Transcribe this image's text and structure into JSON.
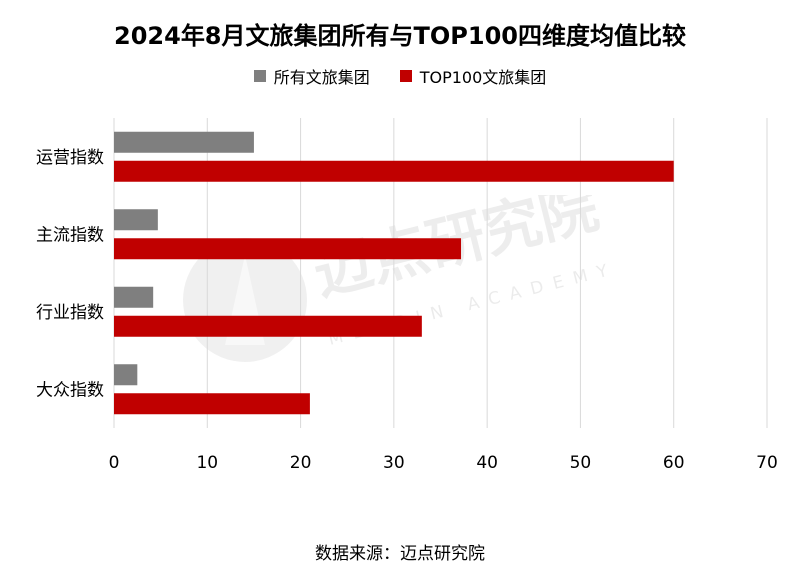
{
  "title": "2024年8月文旅集团所有与TOP100四维度均值比较",
  "source": "数据来源：迈点研究院",
  "watermark": {
    "cn": "迈点研究院",
    "en": "MEADIN ACADEMY"
  },
  "colors": {
    "series_all": "#7f7f7f",
    "series_top": "#c00000",
    "grid": "#d9d9d9"
  },
  "chart_data": {
    "type": "bar",
    "orientation": "horizontal",
    "title": "2024年8月文旅集团所有与TOP100四维度均值比较",
    "categories": [
      "运营指数",
      "主流指数",
      "行业指数",
      "大众指数"
    ],
    "series": [
      {
        "name": "所有文旅集团",
        "values": [
          15,
          4.7,
          4.2,
          2.5
        ]
      },
      {
        "name": "TOP100文旅集团",
        "values": [
          60,
          37.2,
          33,
          21
        ]
      }
    ],
    "xlim": [
      0,
      70
    ],
    "xticks": [
      "0",
      "10",
      "20",
      "30",
      "40",
      "50",
      "60",
      "70"
    ],
    "grid": true,
    "legend_position": "top"
  }
}
